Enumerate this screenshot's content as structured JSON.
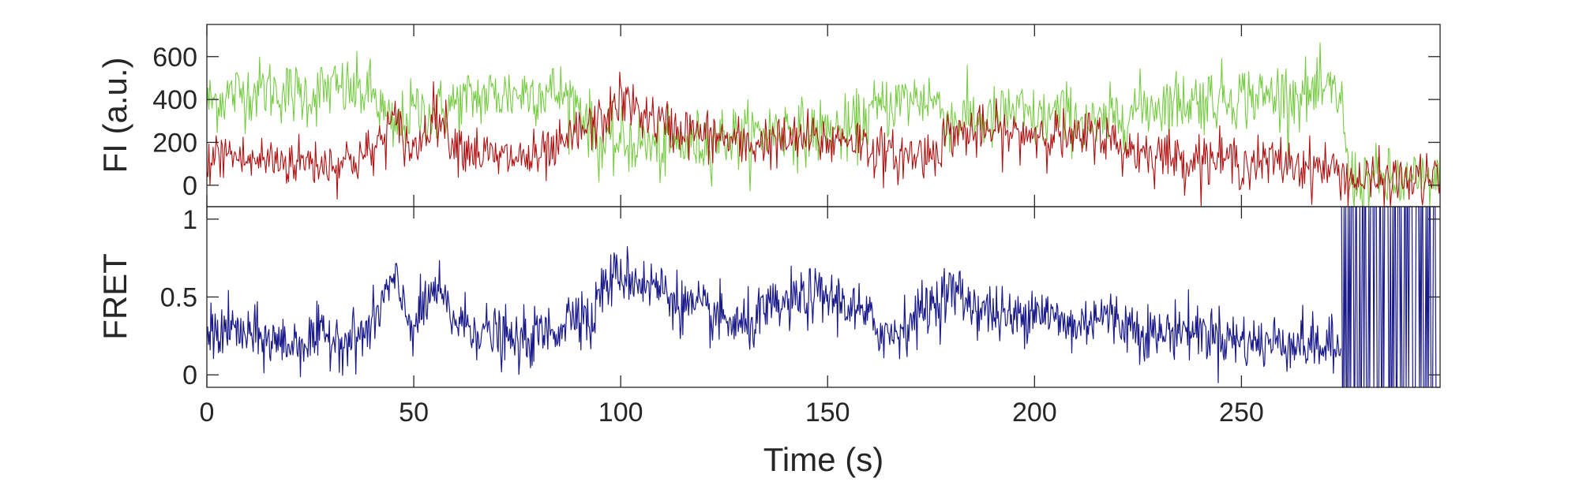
{
  "chart_data": [
    {
      "type": "line",
      "title": "",
      "ylabel": "FI (a.u.)",
      "xlabel": "",
      "xlim": [
        0,
        298
      ],
      "ylim": [
        -100,
        750
      ],
      "xticks": [
        0,
        50,
        100,
        150,
        200,
        250
      ],
      "yticks": [
        0,
        200,
        400,
        600
      ],
      "ytick_labels": [
        "0",
        "200",
        "400",
        "600"
      ],
      "grid": false,
      "series": [
        {
          "color": "#77cc44",
          "x": [
            0,
            5,
            10,
            15,
            20,
            25,
            30,
            35,
            40,
            45,
            50,
            55,
            60,
            65,
            70,
            75,
            80,
            85,
            90,
            95,
            100,
            105,
            110,
            115,
            120,
            125,
            130,
            135,
            140,
            145,
            150,
            155,
            160,
            165,
            170,
            175,
            180,
            185,
            190,
            195,
            200,
            205,
            210,
            215,
            220,
            225,
            230,
            235,
            240,
            245,
            250,
            255,
            260,
            265,
            270,
            274,
            276,
            280,
            285,
            290,
            295,
            298
          ],
          "y": [
            380,
            420,
            440,
            450,
            430,
            420,
            450,
            440,
            430,
            250,
            350,
            330,
            380,
            410,
            420,
            430,
            440,
            430,
            380,
            180,
            200,
            200,
            160,
            190,
            200,
            230,
            220,
            250,
            270,
            240,
            260,
            250,
            330,
            380,
            400,
            410,
            300,
            320,
            300,
            350,
            300,
            330,
            320,
            260,
            320,
            360,
            380,
            390,
            400,
            410,
            420,
            410,
            430,
            420,
            430,
            420,
            30,
            20,
            20,
            10,
            10,
            20
          ]
        },
        {
          "color": "#b01010",
          "x": [
            0,
            5,
            10,
            15,
            20,
            25,
            30,
            35,
            40,
            45,
            50,
            55,
            60,
            65,
            70,
            75,
            80,
            85,
            90,
            95,
            100,
            105,
            110,
            115,
            120,
            125,
            130,
            135,
            140,
            145,
            150,
            155,
            160,
            165,
            170,
            175,
            180,
            185,
            190,
            195,
            200,
            205,
            210,
            215,
            220,
            225,
            230,
            235,
            240,
            245,
            250,
            255,
            260,
            265,
            270,
            274,
            276,
            280,
            285,
            290,
            295,
            298
          ],
          "y": [
            120,
            150,
            110,
            120,
            110,
            110,
            100,
            120,
            150,
            300,
            150,
            350,
            200,
            160,
            120,
            130,
            120,
            160,
            250,
            290,
            400,
            340,
            280,
            260,
            230,
            220,
            180,
            210,
            200,
            220,
            200,
            230,
            180,
            130,
            140,
            150,
            250,
            240,
            250,
            230,
            250,
            240,
            200,
            260,
            180,
            160,
            150,
            120,
            130,
            120,
            110,
            100,
            110,
            90,
            80,
            60,
            30,
            20,
            20,
            20,
            30,
            20
          ]
        }
      ]
    },
    {
      "type": "line",
      "title": "",
      "ylabel": "FRET",
      "xlabel": "Time (s)",
      "xlim": [
        0,
        298
      ],
      "ylim": [
        -0.08,
        1.08
      ],
      "xticks": [
        0,
        50,
        100,
        150,
        200,
        250
      ],
      "xtick_labels": [
        "0",
        "50",
        "100",
        "150",
        "200",
        "250"
      ],
      "yticks": [
        0,
        0.5,
        1
      ],
      "ytick_labels": [
        "0",
        "0.5",
        "1"
      ],
      "grid": false,
      "series": [
        {
          "color": "#1a1a8c",
          "x": [
            0,
            5,
            10,
            15,
            20,
            25,
            30,
            35,
            40,
            42,
            45,
            50,
            55,
            60,
            65,
            70,
            75,
            80,
            85,
            90,
            93,
            95,
            100,
            105,
            110,
            115,
            120,
            125,
            130,
            135,
            140,
            145,
            150,
            155,
            160,
            165,
            170,
            175,
            180,
            185,
            190,
            195,
            200,
            205,
            210,
            215,
            220,
            225,
            230,
            235,
            240,
            245,
            250,
            255,
            260,
            265,
            270,
            274
          ],
          "y": [
            0.25,
            0.3,
            0.25,
            0.22,
            0.2,
            0.22,
            0.25,
            0.22,
            0.3,
            0.45,
            0.6,
            0.3,
            0.55,
            0.35,
            0.3,
            0.25,
            0.2,
            0.25,
            0.3,
            0.45,
            0.3,
            0.55,
            0.65,
            0.6,
            0.55,
            0.45,
            0.4,
            0.35,
            0.3,
            0.4,
            0.45,
            0.5,
            0.5,
            0.45,
            0.35,
            0.25,
            0.35,
            0.45,
            0.55,
            0.45,
            0.4,
            0.35,
            0.45,
            0.35,
            0.3,
            0.4,
            0.35,
            0.3,
            0.25,
            0.3,
            0.28,
            0.25,
            0.22,
            0.2,
            0.22,
            0.2,
            0.18,
            0.15
          ]
        }
      ]
    }
  ]
}
